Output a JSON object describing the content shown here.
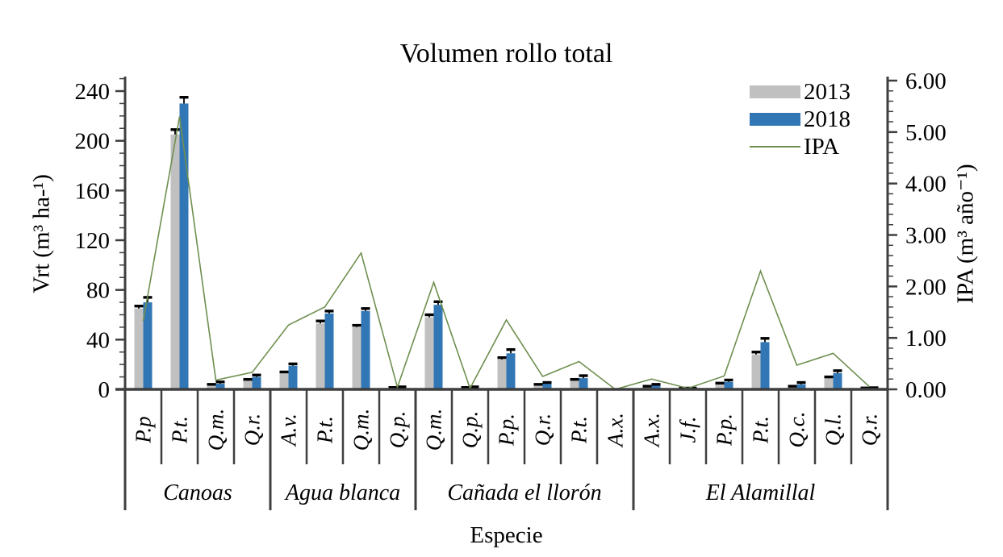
{
  "chart_data": {
    "type": "bar",
    "title": "Volumen rollo total",
    "xlabel": "Especie",
    "left_axis": {
      "label": "Vrt (m³ ha-¹)",
      "min": 0,
      "max": 240,
      "tick_step": 40,
      "minor_step": 10,
      "tick_labels": [
        "0",
        "40",
        "80",
        "120",
        "160",
        "200",
        "240"
      ]
    },
    "right_axis": {
      "label": "IPA (m³ año⁻¹)",
      "min": 0,
      "max": 6,
      "tick_step": 1,
      "minor_step": 0.2,
      "tick_labels": [
        "0.00",
        "1.00",
        "2.00",
        "3.00",
        "4.00",
        "5.00",
        "6.00"
      ]
    },
    "groups": [
      {
        "label": "Canoas",
        "species": [
          "P.p",
          "P.t.",
          "Q.m.",
          "Q.r."
        ]
      },
      {
        "label": "Agua blanca",
        "species": [
          "A.v.",
          "P.t.",
          "Q.m.",
          "Q.p."
        ]
      },
      {
        "label": "Cañada el llorón",
        "species": [
          "Q.m.",
          "Q.p.",
          "P.p.",
          "Q.r.",
          "P.t.",
          "A.x."
        ]
      },
      {
        "label": "El Alamillal",
        "species": [
          "A.x.",
          "J.f.",
          "P.p.",
          "P.t.",
          "Q.c.",
          "Q.l.",
          "Q.r."
        ]
      }
    ],
    "categories": [
      "P.p",
      "P.t.",
      "Q.m.",
      "Q.r.",
      "A.v.",
      "P.t.",
      "Q.m.",
      "Q.p.",
      "Q.m.",
      "Q.p.",
      "P.p.",
      "Q.r.",
      "P.t.",
      "A.x.",
      "A.x.",
      "J.f.",
      "P.p.",
      "P.t.",
      "Q.c.",
      "Q.l.",
      "Q.r."
    ],
    "series": [
      {
        "name": "2013",
        "type": "bar",
        "axis": "left",
        "color": "#C0C0C0",
        "values": [
          65,
          205,
          3,
          7,
          13,
          53,
          50,
          1,
          58,
          1,
          24,
          3,
          7,
          0.3,
          2,
          0.7,
          4,
          28,
          2,
          9,
          0.8
        ],
        "errors": [
          2,
          4,
          1,
          1,
          1,
          2,
          1.5,
          0.5,
          2,
          0.5,
          1.5,
          1,
          1,
          0,
          0.5,
          0.3,
          1,
          2,
          0.5,
          1,
          0.3
        ]
      },
      {
        "name": "2018",
        "type": "bar",
        "axis": "left",
        "color": "#3277B5",
        "values": [
          70,
          230,
          4.5,
          10,
          19,
          61,
          63,
          1.5,
          68,
          1.5,
          29,
          4.5,
          9,
          0.3,
          3,
          0.7,
          6,
          38,
          4,
          13,
          1
        ],
        "errors": [
          4,
          5,
          1.5,
          1.5,
          1.5,
          2,
          2,
          0.5,
          2.5,
          0.5,
          3,
          1,
          2,
          0,
          1,
          0.3,
          1.5,
          3,
          1.5,
          2,
          0.3
        ]
      },
      {
        "name": "IPA",
        "type": "line",
        "axis": "right",
        "color": "#6F8F4F",
        "values": [
          1.33,
          5.3,
          0.18,
          0.33,
          1.25,
          1.6,
          2.65,
          0.04,
          2.08,
          0.02,
          1.35,
          0.25,
          0.54,
          0.0,
          0.2,
          0.02,
          0.26,
          2.3,
          0.47,
          0.7,
          0.05
        ]
      }
    ],
    "legend": [
      {
        "label": "2013",
        "color": "#C0C0C0",
        "type": "bar"
      },
      {
        "label": "2018",
        "color": "#3277B5",
        "type": "bar"
      },
      {
        "label": "IPA",
        "color": "#6F8F4F",
        "type": "line"
      }
    ],
    "error_bar_color": "#000000",
    "axis_color": "#3F3F3F",
    "grid": "off",
    "legend_position": "top-right"
  }
}
